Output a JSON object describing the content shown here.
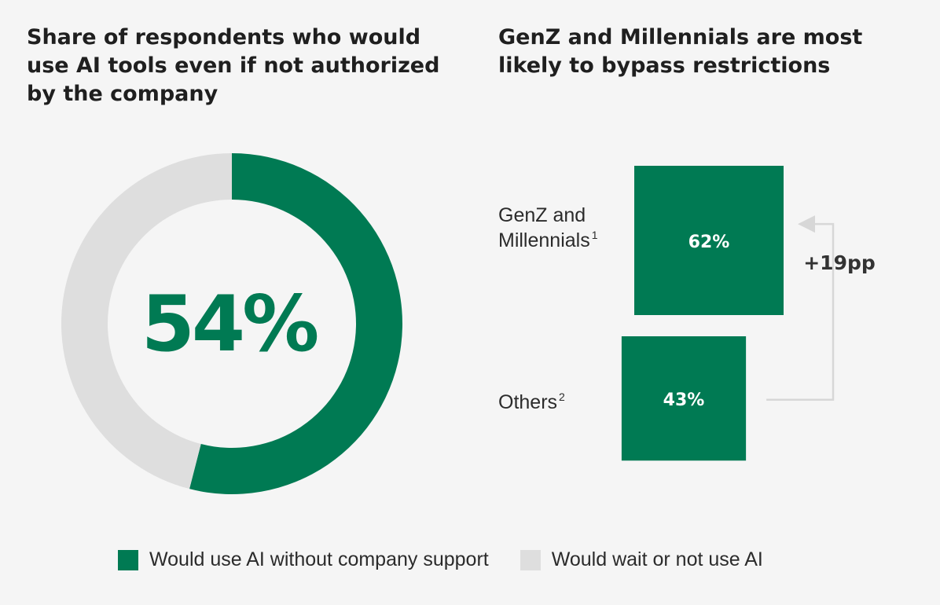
{
  "colors": {
    "accent": "#007a53",
    "muted": "#dedede",
    "arrow": "#d7d7d7",
    "text": "#2b2b2b"
  },
  "left_chart": {
    "title_lines": [
      "Share of respondents who would",
      "use AI tools even if not authorized",
      "by the company"
    ]
  },
  "right_chart": {
    "title_lines": [
      "GenZ and Millennials are most",
      "likely to bypass restrictions"
    ],
    "delta_label": "+19pp"
  },
  "legend": [
    {
      "label": "Would use AI without company support",
      "color": "#007a53"
    },
    {
      "label": "Would wait or not use AI",
      "color": "#dedede"
    }
  ],
  "chart_data": [
    {
      "type": "pie",
      "categories": [
        "Would use AI without company support",
        "Would wait or not use AI"
      ],
      "values": [
        54,
        46
      ],
      "unit": "%",
      "center_label": "54%"
    },
    {
      "type": "bar",
      "categories": [
        "GenZ and Millennials",
        "Others"
      ],
      "category_lines": [
        [
          "GenZ and",
          "Millennials"
        ],
        [
          "Others"
        ]
      ],
      "footnotes": [
        "1",
        "2"
      ],
      "values": [
        62,
        43
      ],
      "value_labels": [
        "62%",
        "43%"
      ],
      "annotation": "+19pp"
    }
  ]
}
